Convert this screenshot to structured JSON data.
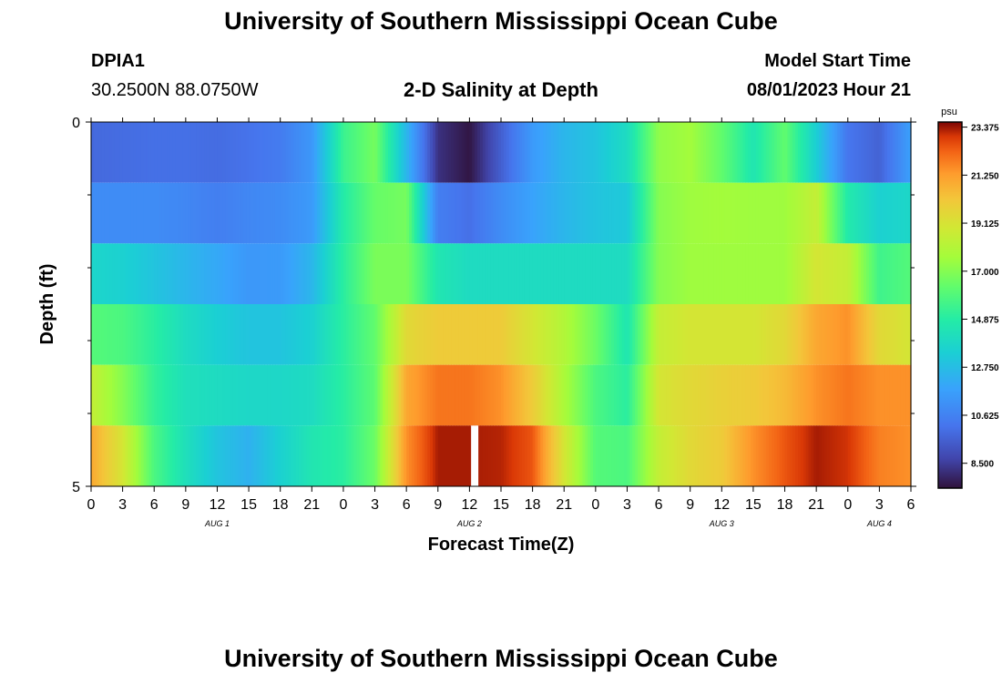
{
  "page": {
    "title": "University of Southern Mississippi Ocean Cube",
    "title_repeat": "University of Southern Mississippi Ocean Cube"
  },
  "header": {
    "station": "DPIA1",
    "coords": "30.2500N  88.0750W",
    "plot_title": "2-D Salinity at Depth",
    "model_start_label": "Model Start Time",
    "model_start_value": "08/01/2023 Hour 21"
  },
  "chart_data": {
    "type": "heatmap",
    "title": "2-D Salinity at Depth",
    "xlabel": "Forecast Time(Z)",
    "ylabel": "Depth (ft)",
    "y_tick_labels": [
      "0",
      "5"
    ],
    "ylim": [
      0,
      5
    ],
    "x_tick_labels": [
      "0",
      "3",
      "6",
      "9",
      "12",
      "15",
      "18",
      "21",
      "0",
      "3",
      "6",
      "9",
      "12",
      "15",
      "18",
      "21",
      "0",
      "3",
      "6",
      "9",
      "12",
      "15",
      "18",
      "21",
      "0",
      "3",
      "6"
    ],
    "day_labels": [
      "AUG 1",
      "AUG 2",
      "AUG 3",
      "AUG 4"
    ],
    "colorbar": {
      "unit": "psu",
      "tick_labels": [
        "23.375",
        "21.250",
        "19.125",
        "17.000",
        "14.875",
        "12.750",
        "10.625",
        "8.500"
      ],
      "tick_values": [
        23.375,
        21.25,
        19.125,
        17.0,
        14.875,
        12.75,
        10.625,
        8.5
      ],
      "range": [
        7.4,
        23.6
      ]
    },
    "time_hours": [
      0,
      3,
      6,
      9,
      12,
      15,
      18,
      21,
      24,
      27,
      30,
      33,
      36,
      39,
      42,
      45,
      48,
      51,
      54,
      57,
      60,
      63,
      66,
      69,
      72,
      75,
      78
    ],
    "depth_layers": [
      {
        "name": "layer-1",
        "values": [
          9.8,
          9.9,
          10.0,
          10.0,
          9.9,
          10.1,
          10.4,
          11.4,
          15.4,
          16.7,
          12.5,
          8.2,
          7.5,
          9.5,
          11.5,
          12.5,
          13.0,
          14.0,
          17.2,
          17.6,
          16.3,
          14.5,
          16.3,
          13.4,
          10.2,
          9.6,
          11.7
        ]
      },
      {
        "name": "layer-2",
        "values": [
          11.0,
          11.0,
          11.0,
          10.8,
          10.5,
          10.8,
          11.0,
          11.5,
          14.8,
          16.4,
          16.7,
          10.5,
          10.0,
          11.0,
          11.8,
          12.5,
          13.0,
          13.2,
          17.0,
          17.5,
          17.6,
          17.5,
          17.5,
          18.5,
          14.7,
          13.5,
          13.8
        ]
      },
      {
        "name": "layer-3",
        "values": [
          13.7,
          13.5,
          13.0,
          12.5,
          12.0,
          11.4,
          11.5,
          12.5,
          15.0,
          16.8,
          16.8,
          14.5,
          14.0,
          14.0,
          14.0,
          14.0,
          14.0,
          14.0,
          17.0,
          17.5,
          17.5,
          17.5,
          17.5,
          19.0,
          18.5,
          15.5,
          16.0
        ]
      },
      {
        "name": "layer-4",
        "values": [
          16.0,
          15.8,
          15.0,
          14.0,
          13.4,
          13.0,
          13.0,
          13.5,
          15.0,
          16.3,
          19.5,
          20.0,
          20.0,
          20.0,
          19.0,
          18.0,
          16.5,
          14.5,
          18.5,
          19.0,
          19.0,
          19.0,
          19.5,
          21.0,
          21.5,
          19.5,
          19.0
        ]
      },
      {
        "name": "layer-5",
        "values": [
          18.5,
          17.0,
          15.2,
          14.2,
          14.0,
          13.8,
          13.8,
          14.0,
          15.0,
          16.2,
          21.0,
          22.0,
          22.0,
          21.5,
          20.0,
          17.8,
          15.8,
          15.0,
          19.0,
          19.5,
          19.8,
          20.0,
          20.5,
          21.5,
          22.0,
          21.5,
          21.5
        ]
      },
      {
        "name": "layer-6",
        "values": [
          21.0,
          19.0,
          15.8,
          14.2,
          13.0,
          12.3,
          13.5,
          14.5,
          15.0,
          16.5,
          21.5,
          23.3,
          23.3,
          23.2,
          22.5,
          19.0,
          16.0,
          15.8,
          18.5,
          19.5,
          20.0,
          21.5,
          22.5,
          23.3,
          23.0,
          21.8,
          21.5
        ]
      }
    ],
    "missing": [
      {
        "hour": 36.5,
        "layer": "layer-6"
      }
    ]
  }
}
